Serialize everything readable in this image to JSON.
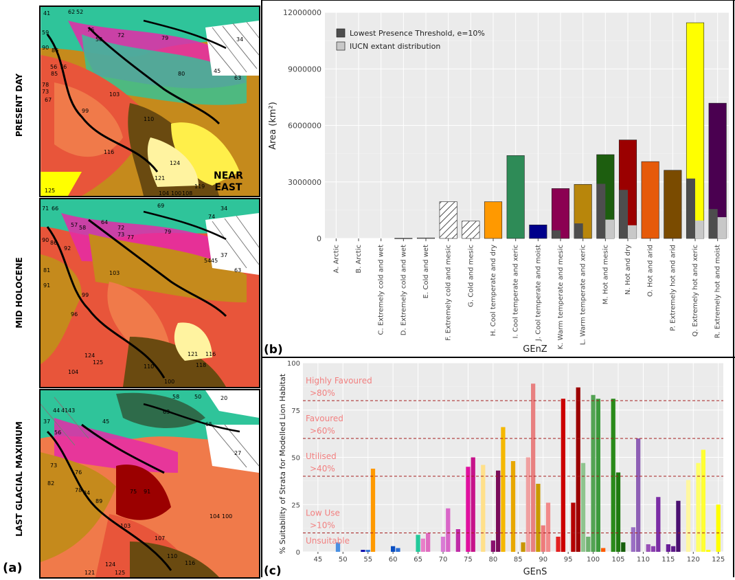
{
  "panel_a": {
    "letter": "(a)",
    "maps": [
      {
        "era": "PRESENT DAY",
        "region_label": [
          "NEAR",
          "EAST"
        ]
      },
      {
        "era": "MID HOLOCENE"
      },
      {
        "era": "LAST GLACIAL MAXIMUM"
      }
    ],
    "present_day_numbers": [
      "41",
      "62",
      "52",
      "76",
      "58",
      "59",
      "72",
      "79",
      "34",
      "90",
      "86",
      "56",
      "78",
      "85",
      "76",
      "73",
      "67",
      "80",
      "45",
      "63",
      "103",
      "99",
      "110",
      "116",
      "124",
      "121",
      "125",
      "119",
      "104",
      "100",
      "108"
    ],
    "mid_holocene_numbers": [
      "71",
      "66",
      "57",
      "64",
      "58",
      "72",
      "73",
      "77",
      "69",
      "74",
      "79",
      "34",
      "90",
      "86",
      "81",
      "92",
      "103",
      "99",
      "96",
      "91",
      "118",
      "110",
      "124",
      "125",
      "121",
      "116",
      "54",
      "45",
      "37",
      "63",
      "100",
      "104"
    ],
    "lgm_numbers": [
      "44",
      "41",
      "43",
      "45",
      "58",
      "50",
      "56",
      "63",
      "37",
      "65",
      "73",
      "82",
      "75",
      "76",
      "91",
      "78",
      "84",
      "89",
      "103",
      "107",
      "110",
      "116",
      "121",
      "124",
      "125",
      "104",
      "100",
      "20",
      "27"
    ]
  },
  "chart_b": {
    "letter": "(b)",
    "chart_data": {
      "type": "bar",
      "ylabel": "Area (km²)",
      "xlabel": "GEnZ",
      "ylim": [
        0,
        12000000
      ],
      "yticks": [
        0,
        3000000,
        6000000,
        9000000,
        12000000
      ],
      "ytick_labels": [
        "0",
        "3000000",
        "6000000",
        "9000000",
        "12000000"
      ],
      "legend_position": "top-left",
      "categories": [
        "A. Arctic",
        "B. Arctic",
        "C. Extremely cold and wet",
        "D. Extremely cold and wet",
        "E. Cold and wet",
        "F. Extremely cold and mesic",
        "G. Cold and mesic",
        "H. Cool temperate and dry",
        "I. Cool temperate and xeric",
        "J. Cool temperate and moist",
        "K. Warm temperate and mesic",
        "L. Warm temperate and xeric",
        "M. Hot and mesic",
        "N. Hot and dry",
        "O. Hot and arid",
        "P. Extremely hot and arid",
        "Q. Extremely hot and xeric",
        "R. Extremely hot and moist"
      ],
      "colors": [
        "#ffffff",
        "#ffffff",
        "#ffffff",
        "#ffffff",
        "#ffffff",
        "#ffffff",
        "#ffffff",
        "#ff9900",
        "#2e8b57",
        "#00008b",
        "#8b0052",
        "#b8860b",
        "#1d5e0f",
        "#9b0000",
        "#e65a0a",
        "#7a4b00",
        "#ffff00",
        "#4a0050"
      ],
      "hatched": [
        false,
        false,
        false,
        false,
        false,
        true,
        true,
        false,
        false,
        false,
        false,
        false,
        false,
        false,
        false,
        false,
        false,
        false
      ],
      "values": [
        0,
        0,
        0,
        10000,
        30000,
        1950000,
        920000,
        1950000,
        4400000,
        720000,
        2650000,
        2870000,
        4450000,
        5230000,
        4080000,
        3620000,
        11450000,
        7180000
      ],
      "series": [
        {
          "name": "Lowest Presence Threshold, e=10%",
          "color": "#4d4d4d",
          "values": [
            0,
            0,
            0,
            0,
            0,
            0,
            0,
            0,
            0,
            0,
            430000,
            800000,
            2900000,
            2580000,
            0,
            0,
            3180000,
            1560000
          ]
        },
        {
          "name": "IUCN extant distribution",
          "color": "#c8c8c8",
          "values": [
            0,
            0,
            0,
            0,
            0,
            0,
            0,
            0,
            0,
            0,
            0,
            0,
            1000000,
            700000,
            0,
            0,
            950000,
            1130000
          ]
        }
      ]
    }
  },
  "chart_c": {
    "letter": "(c)",
    "chart_data": {
      "type": "bar",
      "ylabel": "% Suitability of Strata for Modelled Lion Habitat",
      "xlabel": "GEnS",
      "xlim": [
        42,
        126
      ],
      "ylim": [
        0,
        100
      ],
      "xticks": [
        45,
        50,
        55,
        60,
        65,
        70,
        75,
        80,
        85,
        90,
        95,
        100,
        105,
        110,
        115,
        120,
        125
      ],
      "yticks": [
        0,
        25,
        50,
        75,
        100
      ],
      "thresholds": [
        {
          "y": 80,
          "label": [
            "Highly Favoured",
            ">80%"
          ]
        },
        {
          "y": 60,
          "label": [
            "Favoured",
            ">60%"
          ]
        },
        {
          "y": 40,
          "label": [
            "Utilised",
            ">40%"
          ]
        },
        {
          "y": 10,
          "label": [
            "Low Use",
            ">10%"
          ]
        },
        {
          "y": 0,
          "label": [
            "Unsuitable"
          ]
        }
      ],
      "bars": [
        {
          "x": 49,
          "y": 5,
          "color": "#4a90e2"
        },
        {
          "x": 54,
          "y": 1,
          "color": "#0000aa"
        },
        {
          "x": 55,
          "y": 1,
          "color": "#2a6fd6"
        },
        {
          "x": 56,
          "y": 44,
          "color": "#ff9900"
        },
        {
          "x": 60,
          "y": 3,
          "color": "#0b4fc2"
        },
        {
          "x": 61,
          "y": 2,
          "color": "#2a6fd6"
        },
        {
          "x": 65,
          "y": 9,
          "color": "#22c99a"
        },
        {
          "x": 66,
          "y": 7,
          "color": "#e87ec8"
        },
        {
          "x": 67,
          "y": 10,
          "color": "#e06cc0"
        },
        {
          "x": 70,
          "y": 8,
          "color": "#d97bd4"
        },
        {
          "x": 71,
          "y": 23,
          "color": "#d966c8"
        },
        {
          "x": 73,
          "y": 12,
          "color": "#c02aa7"
        },
        {
          "x": 75,
          "y": 45,
          "color": "#e0109f"
        },
        {
          "x": 76,
          "y": 50,
          "color": "#c6128a"
        },
        {
          "x": 78,
          "y": 46,
          "color": "#ffe08a"
        },
        {
          "x": 80,
          "y": 6,
          "color": "#8a0f6e"
        },
        {
          "x": 81,
          "y": 43,
          "color": "#7a0c5a"
        },
        {
          "x": 82,
          "y": 66,
          "color": "#f5b800"
        },
        {
          "x": 84,
          "y": 48,
          "color": "#e8a800"
        },
        {
          "x": 86,
          "y": 5,
          "color": "#c99500"
        },
        {
          "x": 87,
          "y": 50,
          "color": "#f0a0a0"
        },
        {
          "x": 88,
          "y": 89,
          "color": "#e88080"
        },
        {
          "x": 89,
          "y": 36,
          "color": "#c99a00"
        },
        {
          "x": 90,
          "y": 14,
          "color": "#ee7b7b"
        },
        {
          "x": 91,
          "y": 26,
          "color": "#f28a8a"
        },
        {
          "x": 93,
          "y": 8,
          "color": "#e32020"
        },
        {
          "x": 94,
          "y": 81,
          "color": "#cc0000"
        },
        {
          "x": 96,
          "y": 26,
          "color": "#b50000"
        },
        {
          "x": 97,
          "y": 87,
          "color": "#9b0000"
        },
        {
          "x": 98,
          "y": 47,
          "color": "#8fc48f"
        },
        {
          "x": 99,
          "y": 8,
          "color": "#6fb26f"
        },
        {
          "x": 100,
          "y": 83,
          "color": "#53a353"
        },
        {
          "x": 101,
          "y": 81,
          "color": "#3c9a3c"
        },
        {
          "x": 102,
          "y": 2,
          "color": "#ff5a00"
        },
        {
          "x": 104,
          "y": 81,
          "color": "#2a8a1a"
        },
        {
          "x": 105,
          "y": 42,
          "color": "#1f7a10"
        },
        {
          "x": 106,
          "y": 5,
          "color": "#155e0a"
        },
        {
          "x": 108,
          "y": 13,
          "color": "#9a6ec4"
        },
        {
          "x": 109,
          "y": 60,
          "color": "#8e5fb5"
        },
        {
          "x": 111,
          "y": 4,
          "color": "#9a52b8"
        },
        {
          "x": 112,
          "y": 3,
          "color": "#8b3fb0"
        },
        {
          "x": 113,
          "y": 29,
          "color": "#7b2da5"
        },
        {
          "x": 115,
          "y": 4,
          "color": "#6a1f99"
        },
        {
          "x": 116,
          "y": 3,
          "color": "#5f1a8a"
        },
        {
          "x": 117,
          "y": 27,
          "color": "#4a0f70"
        },
        {
          "x": 119,
          "y": 38,
          "color": "#fff7a0"
        },
        {
          "x": 121,
          "y": 47,
          "color": "#ffff66"
        },
        {
          "x": 122,
          "y": 54,
          "color": "#ffff33"
        },
        {
          "x": 123,
          "y": 1,
          "color": "#ffff00"
        },
        {
          "x": 125,
          "y": 25,
          "color": "#ffff00"
        }
      ]
    }
  }
}
